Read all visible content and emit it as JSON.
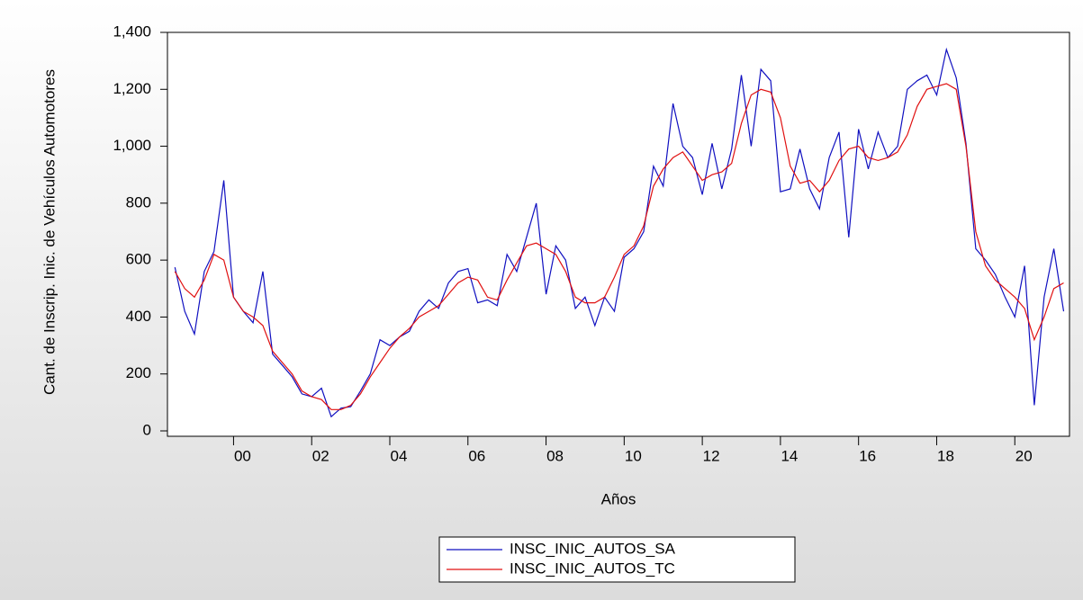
{
  "chart_data": {
    "type": "line",
    "x_label": "Años",
    "y_label": "Cant. de Inscrip. Inic. de Vehículos Automotores",
    "x": [
      1998.5,
      1998.75,
      1999,
      1999.25,
      1999.5,
      1999.75,
      2000,
      2000.25,
      2000.5,
      2000.75,
      2001,
      2001.25,
      2001.5,
      2001.75,
      2002,
      2002.25,
      2002.5,
      2002.75,
      2003,
      2003.25,
      2003.5,
      2003.75,
      2004,
      2004.25,
      2004.5,
      2004.75,
      2005,
      2005.25,
      2005.5,
      2005.75,
      2006,
      2006.25,
      2006.5,
      2006.75,
      2007,
      2007.25,
      2007.5,
      2007.75,
      2008,
      2008.25,
      2008.5,
      2008.75,
      2009,
      2009.25,
      2009.5,
      2009.75,
      2010,
      2010.25,
      2010.5,
      2010.75,
      2011,
      2011.25,
      2011.5,
      2011.75,
      2012,
      2012.25,
      2012.5,
      2012.75,
      2013,
      2013.25,
      2013.5,
      2013.75,
      2014,
      2014.25,
      2014.5,
      2014.75,
      2015,
      2015.25,
      2015.5,
      2015.75,
      2016,
      2016.25,
      2016.5,
      2016.75,
      2017,
      2017.25,
      2017.5,
      2017.75,
      2018,
      2018.25,
      2018.5,
      2018.75,
      2019,
      2019.25,
      2019.5,
      2019.75,
      2020,
      2020.25,
      2020.5,
      2020.75,
      2021,
      2021.25
    ],
    "series": [
      {
        "name": "INSC_INIC_AUTOS_SA",
        "color": "#1010c0",
        "values": [
          575,
          420,
          340,
          560,
          630,
          880,
          470,
          420,
          380,
          560,
          270,
          230,
          190,
          130,
          120,
          150,
          50,
          80,
          85,
          140,
          200,
          320,
          300,
          330,
          350,
          420,
          460,
          430,
          520,
          560,
          570,
          450,
          460,
          440,
          620,
          560,
          680,
          800,
          480,
          650,
          600,
          430,
          470,
          370,
          470,
          420,
          610,
          640,
          700,
          930,
          860,
          1150,
          1000,
          960,
          830,
          1010,
          850,
          990,
          1250,
          1000,
          1270,
          1230,
          840,
          850,
          990,
          850,
          780,
          960,
          1050,
          680,
          1060,
          920,
          1050,
          960,
          1000,
          1200,
          1230,
          1250,
          1180,
          1340,
          1240,
          1010,
          640,
          600,
          550,
          470,
          400,
          580,
          90,
          470,
          640,
          420
        ]
      },
      {
        "name": "INSC_INIC_AUTOS_TC",
        "color": "#e01010",
        "values": [
          560,
          500,
          470,
          530,
          620,
          600,
          470,
          420,
          400,
          370,
          280,
          240,
          200,
          140,
          120,
          110,
          75,
          75,
          90,
          130,
          190,
          240,
          290,
          330,
          360,
          400,
          420,
          440,
          480,
          520,
          540,
          530,
          470,
          460,
          530,
          590,
          650,
          660,
          640,
          620,
          560,
          470,
          450,
          450,
          470,
          540,
          620,
          650,
          720,
          860,
          920,
          960,
          980,
          930,
          880,
          900,
          910,
          940,
          1080,
          1180,
          1200,
          1190,
          1100,
          930,
          870,
          880,
          840,
          880,
          950,
          990,
          1000,
          960,
          950,
          960,
          980,
          1040,
          1140,
          1200,
          1210,
          1220,
          1200,
          1000,
          700,
          580,
          530,
          500,
          470,
          430,
          320,
          400,
          500,
          520
        ]
      }
    ],
    "xlim": [
      1998.4,
      2021.4
    ],
    "xticks": [
      {
        "value": 2000,
        "label": "00"
      },
      {
        "value": 2002,
        "label": "02"
      },
      {
        "value": 2004,
        "label": "04"
      },
      {
        "value": 2006,
        "label": "06"
      },
      {
        "value": 2008,
        "label": "08"
      },
      {
        "value": 2010,
        "label": "10"
      },
      {
        "value": 2012,
        "label": "12"
      },
      {
        "value": 2014,
        "label": "14"
      },
      {
        "value": 2016,
        "label": "16"
      },
      {
        "value": 2018,
        "label": "18"
      },
      {
        "value": 2020,
        "label": "20"
      }
    ],
    "ylim": [
      0,
      1400
    ],
    "yticks": [
      0,
      {
        "value": 200,
        "label": "200"
      },
      {
        "value": 400,
        "label": "400"
      },
      {
        "value": 600,
        "label": "600"
      },
      {
        "value": 800,
        "label": "800"
      },
      {
        "value": 1000,
        "label": "1,000"
      },
      {
        "value": 1200,
        "label": "1,200"
      },
      {
        "value": 1400,
        "label": "1,400"
      }
    ]
  }
}
